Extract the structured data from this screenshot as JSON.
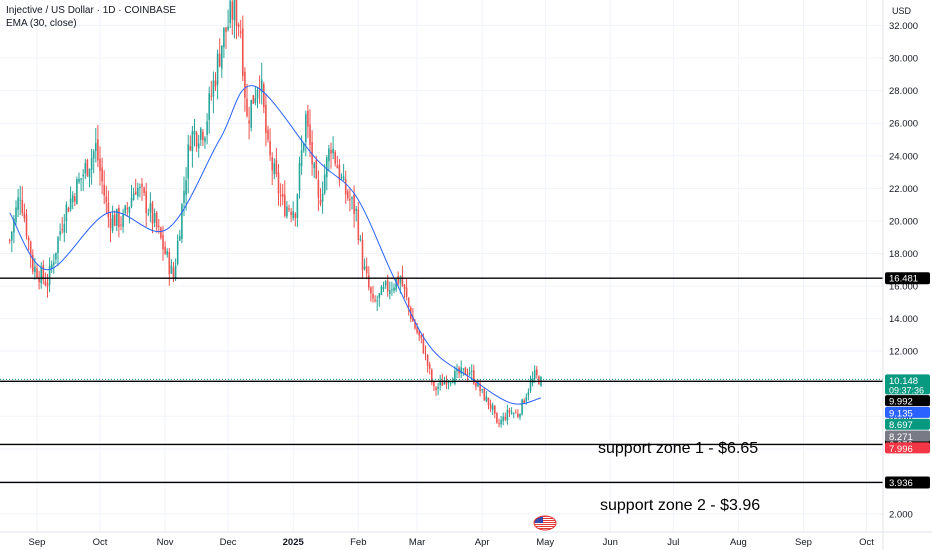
{
  "header": {
    "symbol_line": "Injective / US Dollar · 1D · COINBASE",
    "indicator_line": "EMA (30, close)",
    "currency": "USD"
  },
  "colors": {
    "up": "#26a69a",
    "down": "#ef5350",
    "ema": "#2962ff",
    "hline": "#000000"
  },
  "chart_data": {
    "type": "candlestick",
    "title": "Injective / US Dollar · 1D · COINBASE",
    "ylim": [
      1.2,
      33.2
    ],
    "y_ticks": [
      "2.000",
      "4.000",
      "6.000",
      "8.000",
      "10.000",
      "12.000",
      "14.000",
      "16.000",
      "18.000",
      "20.000",
      "22.000",
      "24.000",
      "26.000",
      "28.000",
      "30.000",
      "32.000"
    ],
    "x_range": [
      "2024-08-19",
      "2024-10-25"
    ],
    "x_ticks": [
      {
        "label": "Sep",
        "date": "2024-09-01"
      },
      {
        "label": "Oct",
        "date": "2024-10-01"
      },
      {
        "label": "Nov",
        "date": "2024-11-01"
      },
      {
        "label": "Dec",
        "date": "2024-12-01"
      },
      {
        "label": "2025",
        "date": "2025-01-01"
      },
      {
        "label": "Feb",
        "date": "2025-02-01"
      },
      {
        "label": "Mar",
        "date": "2025-03-01"
      },
      {
        "label": "Apr",
        "date": "2025-04-01"
      },
      {
        "label": "May",
        "date": "2025-05-01"
      },
      {
        "label": "Jun",
        "date": "2025-06-01"
      },
      {
        "label": "Jul",
        "date": "2025-07-01"
      },
      {
        "label": "Aug",
        "date": "2025-08-01"
      },
      {
        "label": "Sep",
        "date": "2025-09-01"
      },
      {
        "label": "Oct",
        "date": "2025-10-01"
      }
    ],
    "price_keypoints": [
      {
        "date": "2024-08-19",
        "close": 18.8
      },
      {
        "date": "2024-08-24",
        "close": 21.8
      },
      {
        "date": "2024-08-30",
        "close": 17.2
      },
      {
        "date": "2024-09-06",
        "close": 16.2
      },
      {
        "date": "2024-09-14",
        "close": 20.5
      },
      {
        "date": "2024-09-24",
        "close": 23.2
      },
      {
        "date": "2024-09-29",
        "close": 24.5
      },
      {
        "date": "2024-10-05",
        "close": 20.2
      },
      {
        "date": "2024-10-12",
        "close": 20.0
      },
      {
        "date": "2024-10-18",
        "close": 22.2
      },
      {
        "date": "2024-10-24",
        "close": 20.8
      },
      {
        "date": "2024-10-29",
        "close": 19.2
      },
      {
        "date": "2024-11-05",
        "close": 16.5
      },
      {
        "date": "2024-11-13",
        "close": 25.2
      },
      {
        "date": "2024-11-20",
        "close": 25.8
      },
      {
        "date": "2024-11-28",
        "close": 31.0
      },
      {
        "date": "2024-12-04",
        "close": 33.2
      },
      {
        "date": "2024-12-07",
        "close": 31.8
      },
      {
        "date": "2024-12-10",
        "close": 26.2
      },
      {
        "date": "2024-12-16",
        "close": 29.0
      },
      {
        "date": "2024-12-20",
        "close": 24.2
      },
      {
        "date": "2024-12-27",
        "close": 21.0
      },
      {
        "date": "2025-01-02",
        "close": 20.8
      },
      {
        "date": "2025-01-07",
        "close": 26.3
      },
      {
        "date": "2025-01-13",
        "close": 21.0
      },
      {
        "date": "2025-01-19",
        "close": 24.8
      },
      {
        "date": "2025-01-25",
        "close": 22.0
      },
      {
        "date": "2025-01-31",
        "close": 20.5
      },
      {
        "date": "2025-02-03",
        "close": 17.4
      },
      {
        "date": "2025-02-08",
        "close": 14.8
      },
      {
        "date": "2025-02-14",
        "close": 15.8
      },
      {
        "date": "2025-02-21",
        "close": 16.5
      },
      {
        "date": "2025-02-27",
        "close": 13.8
      },
      {
        "date": "2025-03-04",
        "close": 12.2
      },
      {
        "date": "2025-03-09",
        "close": 9.6
      },
      {
        "date": "2025-03-15",
        "close": 10.3
      },
      {
        "date": "2025-03-21",
        "close": 10.6
      },
      {
        "date": "2025-03-26",
        "close": 10.8
      },
      {
        "date": "2025-03-31",
        "close": 9.6
      },
      {
        "date": "2025-04-06",
        "close": 8.4
      },
      {
        "date": "2025-04-08",
        "close": 7.4
      },
      {
        "date": "2025-04-14",
        "close": 8.3
      },
      {
        "date": "2025-04-18",
        "close": 8.1
      },
      {
        "date": "2025-04-22",
        "close": 9.4
      },
      {
        "date": "2025-04-26",
        "close": 10.5
      },
      {
        "date": "2025-04-29",
        "close": 10.15
      }
    ],
    "ema_keypoints": [
      {
        "date": "2024-08-19",
        "value": 20.5
      },
      {
        "date": "2024-09-06",
        "value": 17.0
      },
      {
        "date": "2024-10-05",
        "value": 20.5
      },
      {
        "date": "2024-11-02",
        "value": 19.5
      },
      {
        "date": "2024-11-27",
        "value": 25.0
      },
      {
        "date": "2024-12-13",
        "value": 28.3
      },
      {
        "date": "2025-01-12",
        "value": 23.8
      },
      {
        "date": "2025-01-31",
        "value": 21.5
      },
      {
        "date": "2025-02-18",
        "value": 16.5
      },
      {
        "date": "2025-03-07",
        "value": 12.3
      },
      {
        "date": "2025-03-26",
        "value": 10.4
      },
      {
        "date": "2025-04-15",
        "value": 8.8
      },
      {
        "date": "2025-04-29",
        "value": 9.13
      }
    ],
    "horizontal_lines": [
      {
        "value": 16.481,
        "label": "16.481"
      },
      {
        "value": 10.148,
        "label": ""
      },
      {
        "value": 6.272,
        "label": "6.272"
      },
      {
        "value": 3.936,
        "label": "3.936"
      }
    ],
    "dotted_line": 10.148,
    "price_labels": [
      {
        "value": "10.148",
        "sub": "09:37:36",
        "price": 10.148,
        "bg": "#089981",
        "fg": "#ffffff"
      },
      {
        "value": "9.992",
        "price": 9.992,
        "bg": "#000000",
        "fg": "#ffffff"
      },
      {
        "value": "9.135",
        "price": 9.135,
        "bg": "#2962ff",
        "fg": "#ffffff"
      },
      {
        "value": "8.697",
        "price": 8.697,
        "bg": "#089981",
        "fg": "#ffffff"
      },
      {
        "value": "8.271",
        "price": 8.271,
        "bg": "#787b86",
        "fg": "#ffffff"
      },
      {
        "value": "7.996",
        "price": 7.996,
        "bg": "#f23645",
        "fg": "#ffffff"
      }
    ],
    "annotations": [
      {
        "text": "support zone 1 - $6.65",
        "price": 6.272
      },
      {
        "text": "support zone 2 - $3.96",
        "price": 3.936
      }
    ]
  }
}
